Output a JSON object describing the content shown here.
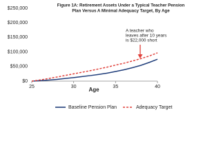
{
  "chart_data": {
    "type": "line",
    "title": [
      "Figure 1A: Retirement Assets Under a Typical Teacher Pension",
      "Plan Versus A Minimal Adequacy Target, By Age"
    ],
    "x_label": "Age",
    "annotation": [
      "A teacher who",
      "leaves after 10 years",
      "is $22,000 short"
    ],
    "x": [
      25,
      26,
      27,
      28,
      29,
      30,
      31,
      32,
      33,
      34,
      35,
      36,
      37,
      38,
      39,
      40
    ],
    "series": [
      {
        "name": "Baseline Pension Plan",
        "color": "#1f3d7a",
        "dashed": false,
        "values": [
          0,
          1500,
          3500,
          6000,
          9000,
          12000,
          15500,
          19000,
          23000,
          27500,
          33000,
          39000,
          46000,
          54000,
          64000,
          75000
        ]
      },
      {
        "name": "Adequacy Target",
        "color": "#e0403a",
        "dashed": true,
        "values": [
          0,
          4000,
          9000,
          14000,
          19500,
          25000,
          30500,
          36000,
          42000,
          48000,
          55000,
          61500,
          69000,
          77000,
          86000,
          97000
        ]
      }
    ],
    "xlim": [
      25,
      40
    ],
    "xticks": [
      25,
      30,
      35,
      40
    ],
    "ylim": [
      0,
      250000
    ],
    "yticks": [
      {
        "value": 0,
        "label": "$0"
      },
      {
        "value": 50000,
        "label": "$50,000"
      },
      {
        "value": 100000,
        "label": "$100,000"
      },
      {
        "value": 150000,
        "label": "$150,000"
      },
      {
        "value": 200000,
        "label": "$200,000"
      },
      {
        "value": 250000,
        "label": "$250,000"
      }
    ],
    "grid": false,
    "legend": "bottom"
  }
}
